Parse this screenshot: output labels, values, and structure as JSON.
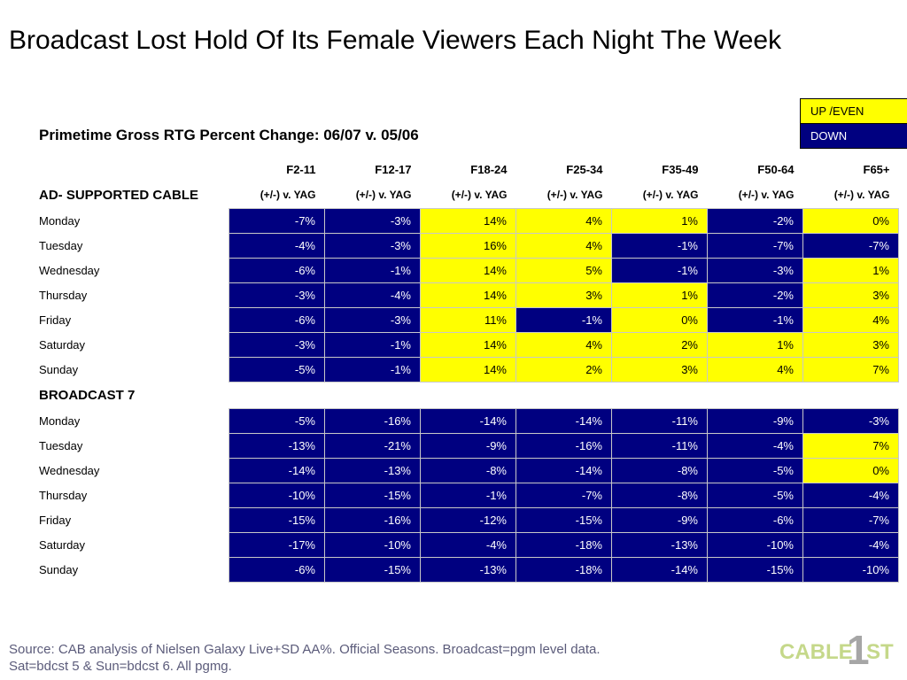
{
  "title": "Broadcast Lost Hold Of Its Female Viewers Each Night The Week",
  "subtitle": "Primetime Gross RTG Percent Change: 06/07 v. 05/06",
  "legend": {
    "up": "UP /EVEN",
    "down": "DOWN"
  },
  "columns": [
    "F2-11",
    "F12-17",
    "F18-24",
    "F25-34",
    "F35-49",
    "F50-64",
    "F65+"
  ],
  "metric_label": "(+/-) v. YAG",
  "sections": [
    {
      "name": "AD- SUPPORTED CABLE",
      "rows": [
        {
          "day": "Monday",
          "values": [
            "-7%",
            "-3%",
            "14%",
            "4%",
            "1%",
            "-2%",
            "0%"
          ]
        },
        {
          "day": "Tuesday",
          "values": [
            "-4%",
            "-3%",
            "16%",
            "4%",
            "-1%",
            "-7%",
            "-7%"
          ]
        },
        {
          "day": "Wednesday",
          "values": [
            "-6%",
            "-1%",
            "14%",
            "5%",
            "-1%",
            "-3%",
            "1%"
          ]
        },
        {
          "day": "Thursday",
          "values": [
            "-3%",
            "-4%",
            "14%",
            "3%",
            "1%",
            "-2%",
            "3%"
          ]
        },
        {
          "day": "Friday",
          "values": [
            "-6%",
            "-3%",
            "11%",
            "-1%",
            "0%",
            "-1%",
            "4%"
          ]
        },
        {
          "day": "Saturday",
          "values": [
            "-3%",
            "-1%",
            "14%",
            "4%",
            "2%",
            "1%",
            "3%"
          ]
        },
        {
          "day": "Sunday",
          "values": [
            "-5%",
            "-1%",
            "14%",
            "2%",
            "3%",
            "4%",
            "7%"
          ]
        }
      ]
    },
    {
      "name": "BROADCAST 7",
      "rows": [
        {
          "day": "Monday",
          "values": [
            "-5%",
            "-16%",
            "-14%",
            "-14%",
            "-11%",
            "-9%",
            "-3%"
          ]
        },
        {
          "day": "Tuesday",
          "values": [
            "-13%",
            "-21%",
            "-9%",
            "-16%",
            "-11%",
            "-4%",
            "7%"
          ]
        },
        {
          "day": "Wednesday",
          "values": [
            "-14%",
            "-13%",
            "-8%",
            "-14%",
            "-8%",
            "-5%",
            "0%"
          ]
        },
        {
          "day": "Thursday",
          "values": [
            "-10%",
            "-15%",
            "-1%",
            "-7%",
            "-8%",
            "-5%",
            "-4%"
          ]
        },
        {
          "day": "Friday",
          "values": [
            "-15%",
            "-16%",
            "-12%",
            "-15%",
            "-9%",
            "-6%",
            "-7%"
          ]
        },
        {
          "day": "Saturday",
          "values": [
            "-17%",
            "-10%",
            "-4%",
            "-18%",
            "-13%",
            "-10%",
            "-4%"
          ]
        },
        {
          "day": "Sunday",
          "values": [
            "-6%",
            "-15%",
            "-13%",
            "-18%",
            "-14%",
            "-15%",
            "-10%"
          ]
        }
      ]
    }
  ],
  "colors": {
    "up": "#ffff00",
    "down": "#000080",
    "source_text": "#5b5b7a",
    "logo_green": "#c5d88a",
    "logo_gray": "#a6a6a6"
  },
  "source_lines": [
    "Source: CAB analysis of Nielsen Galaxy Live+SD AA%. Official Seasons. Broadcast=pgm level data.",
    "Sat=bdcst 5 & Sun=bdcst 6.  All pgmg."
  ],
  "logo": {
    "icon": "cable-1st-logo",
    "text_a": "CABLE",
    "text_b": "1",
    "text_c": "ST"
  }
}
